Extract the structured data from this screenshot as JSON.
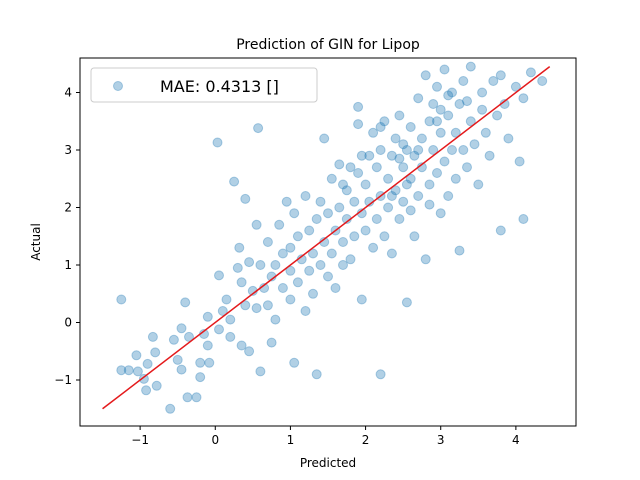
{
  "chart_data": {
    "type": "scatter",
    "title": "Prediction of GIN for Lipop",
    "xlabel": "Predicted",
    "ylabel": "Actual",
    "xlim": [
      -1.8,
      4.8
    ],
    "ylim": [
      -1.8,
      4.6
    ],
    "xticks": [
      -1,
      0,
      1,
      2,
      3,
      4
    ],
    "yticks": [
      -1,
      0,
      1,
      2,
      3,
      4
    ],
    "grid": false,
    "legend": {
      "placement": "top-left",
      "entries": [
        "MAE: 0.4313 []"
      ]
    },
    "colors": {
      "points": "#1f77b4",
      "line": "#e41a1c"
    },
    "point_alpha": 0.35,
    "fit_line": {
      "x": [
        -1.5,
        4.45
      ],
      "y": [
        -1.5,
        4.45
      ]
    },
    "series": [
      {
        "name": "MAE: 0.4313 []",
        "points": [
          [
            -1.25,
            0.4
          ],
          [
            -1.25,
            -0.83
          ],
          [
            -1.15,
            -0.83
          ],
          [
            -1.05,
            -0.57
          ],
          [
            -1.03,
            -0.85
          ],
          [
            -0.95,
            -0.98
          ],
          [
            -0.92,
            -1.18
          ],
          [
            -0.9,
            -0.72
          ],
          [
            -0.83,
            -0.25
          ],
          [
            -0.8,
            -0.52
          ],
          [
            -0.78,
            -1.1
          ],
          [
            -0.6,
            -1.5
          ],
          [
            -0.55,
            -0.3
          ],
          [
            -0.5,
            -0.65
          ],
          [
            -0.45,
            -0.82
          ],
          [
            -0.45,
            -0.1
          ],
          [
            -0.4,
            0.35
          ],
          [
            -0.37,
            -1.3
          ],
          [
            -0.35,
            -0.25
          ],
          [
            -0.25,
            -1.3
          ],
          [
            -0.2,
            -0.7
          ],
          [
            -0.2,
            -0.95
          ],
          [
            -0.15,
            -0.2
          ],
          [
            -0.1,
            -0.4
          ],
          [
            -0.1,
            0.1
          ],
          [
            -0.08,
            -0.7
          ],
          [
            0.03,
            3.13
          ],
          [
            0.05,
            0.82
          ],
          [
            0.05,
            -0.12
          ],
          [
            0.1,
            0.2
          ],
          [
            0.15,
            0.4
          ],
          [
            0.2,
            -0.25
          ],
          [
            0.2,
            0.05
          ],
          [
            0.25,
            2.45
          ],
          [
            0.3,
            0.95
          ],
          [
            0.32,
            1.3
          ],
          [
            0.35,
            -0.4
          ],
          [
            0.35,
            0.7
          ],
          [
            0.4,
            2.15
          ],
          [
            0.4,
            0.3
          ],
          [
            0.45,
            1.05
          ],
          [
            0.45,
            -0.5
          ],
          [
            0.5,
            0.55
          ],
          [
            0.55,
            0.25
          ],
          [
            0.55,
            1.7
          ],
          [
            0.57,
            3.38
          ],
          [
            0.6,
            -0.85
          ],
          [
            0.6,
            1.0
          ],
          [
            0.65,
            0.6
          ],
          [
            0.7,
            0.3
          ],
          [
            0.7,
            1.4
          ],
          [
            0.75,
            0.8
          ],
          [
            0.75,
            -0.35
          ],
          [
            0.8,
            1.0
          ],
          [
            0.8,
            0.05
          ],
          [
            0.85,
            1.7
          ],
          [
            0.9,
            0.6
          ],
          [
            0.9,
            1.2
          ],
          [
            0.95,
            2.1
          ],
          [
            1.0,
            0.4
          ],
          [
            1.0,
            0.9
          ],
          [
            1.0,
            1.3
          ],
          [
            1.05,
            1.9
          ],
          [
            1.05,
            -0.7
          ],
          [
            1.1,
            1.5
          ],
          [
            1.1,
            0.7
          ],
          [
            1.15,
            1.1
          ],
          [
            1.2,
            2.2
          ],
          [
            1.2,
            0.2
          ],
          [
            1.25,
            1.6
          ],
          [
            1.25,
            0.9
          ],
          [
            1.3,
            1.2
          ],
          [
            1.3,
            0.5
          ],
          [
            1.35,
            1.8
          ],
          [
            1.35,
            -0.9
          ],
          [
            1.4,
            1.0
          ],
          [
            1.4,
            2.1
          ],
          [
            1.45,
            3.2
          ],
          [
            1.45,
            1.4
          ],
          [
            1.5,
            0.8
          ],
          [
            1.5,
            1.9
          ],
          [
            1.55,
            1.2
          ],
          [
            1.55,
            2.5
          ],
          [
            1.6,
            1.6
          ],
          [
            1.6,
            0.6
          ],
          [
            1.65,
            2.0
          ],
          [
            1.65,
            2.75
          ],
          [
            1.7,
            1.4
          ],
          [
            1.7,
            1.0
          ],
          [
            1.75,
            2.3
          ],
          [
            1.75,
            1.8
          ],
          [
            1.8,
            1.1
          ],
          [
            1.8,
            2.7
          ],
          [
            1.85,
            2.1
          ],
          [
            1.85,
            1.5
          ],
          [
            1.9,
            3.45
          ],
          [
            1.9,
            3.75
          ],
          [
            1.9,
            2.6
          ],
          [
            1.95,
            1.9
          ],
          [
            1.95,
            0.4
          ],
          [
            2.0,
            2.4
          ],
          [
            2.0,
            1.6
          ],
          [
            2.05,
            2.9
          ],
          [
            2.05,
            2.1
          ],
          [
            2.1,
            1.3
          ],
          [
            2.1,
            3.3
          ],
          [
            2.15,
            2.7
          ],
          [
            2.15,
            1.8
          ],
          [
            2.2,
            2.2
          ],
          [
            2.2,
            3.0
          ],
          [
            2.2,
            -0.9
          ],
          [
            2.25,
            1.5
          ],
          [
            2.25,
            3.5
          ],
          [
            2.3,
            2.5
          ],
          [
            2.3,
            2.0
          ],
          [
            2.35,
            2.9
          ],
          [
            2.35,
            1.2
          ],
          [
            2.4,
            3.2
          ],
          [
            2.4,
            2.3
          ],
          [
            2.45,
            1.8
          ],
          [
            2.45,
            3.6
          ],
          [
            2.5,
            2.7
          ],
          [
            2.5,
            2.1
          ],
          [
            2.55,
            3.0
          ],
          [
            2.55,
            0.35
          ],
          [
            2.6,
            2.5
          ],
          [
            2.6,
            3.4
          ],
          [
            2.65,
            1.5
          ],
          [
            2.65,
            2.9
          ],
          [
            2.7,
            3.9
          ],
          [
            2.7,
            2.2
          ],
          [
            2.75,
            3.2
          ],
          [
            2.75,
            2.7
          ],
          [
            2.8,
            4.3
          ],
          [
            2.8,
            1.1
          ],
          [
            2.85,
            3.5
          ],
          [
            2.85,
            2.4
          ],
          [
            2.9,
            3.0
          ],
          [
            2.9,
            3.8
          ],
          [
            2.95,
            4.1
          ],
          [
            2.95,
            2.6
          ],
          [
            3.0,
            3.3
          ],
          [
            3.0,
            1.9
          ],
          [
            3.05,
            4.4
          ],
          [
            3.05,
            2.8
          ],
          [
            3.1,
            3.6
          ],
          [
            3.1,
            2.2
          ],
          [
            3.15,
            3.0
          ],
          [
            3.15,
            4.0
          ],
          [
            3.2,
            3.3
          ],
          [
            3.2,
            2.5
          ],
          [
            3.25,
            3.8
          ],
          [
            3.25,
            1.25
          ],
          [
            3.3,
            4.2
          ],
          [
            3.3,
            3.0
          ],
          [
            3.35,
            2.7
          ],
          [
            3.4,
            3.5
          ],
          [
            3.4,
            4.45
          ],
          [
            3.45,
            3.1
          ],
          [
            3.5,
            2.4
          ],
          [
            3.55,
            3.7
          ],
          [
            3.55,
            4.0
          ],
          [
            3.6,
            3.3
          ],
          [
            3.65,
            2.9
          ],
          [
            3.7,
            4.2
          ],
          [
            3.75,
            3.6
          ],
          [
            3.8,
            1.6
          ],
          [
            3.8,
            4.3
          ],
          [
            3.85,
            3.8
          ],
          [
            3.9,
            3.2
          ],
          [
            4.0,
            4.1
          ],
          [
            4.05,
            2.8
          ],
          [
            4.1,
            1.8
          ],
          [
            4.1,
            3.9
          ],
          [
            4.2,
            4.35
          ],
          [
            4.35,
            4.2
          ],
          [
            2.2,
            3.4
          ],
          [
            2.5,
            3.1
          ],
          [
            2.7,
            3.0
          ],
          [
            2.95,
            3.5
          ],
          [
            3.1,
            3.95
          ],
          [
            2.35,
            2.2
          ],
          [
            2.55,
            2.4
          ],
          [
            1.7,
            2.4
          ],
          [
            1.95,
            2.9
          ],
          [
            2.6,
            1.95
          ],
          [
            2.85,
            2.05
          ],
          [
            3.35,
            3.85
          ],
          [
            3.0,
            3.7
          ],
          [
            2.45,
            2.85
          ]
        ]
      }
    ]
  }
}
